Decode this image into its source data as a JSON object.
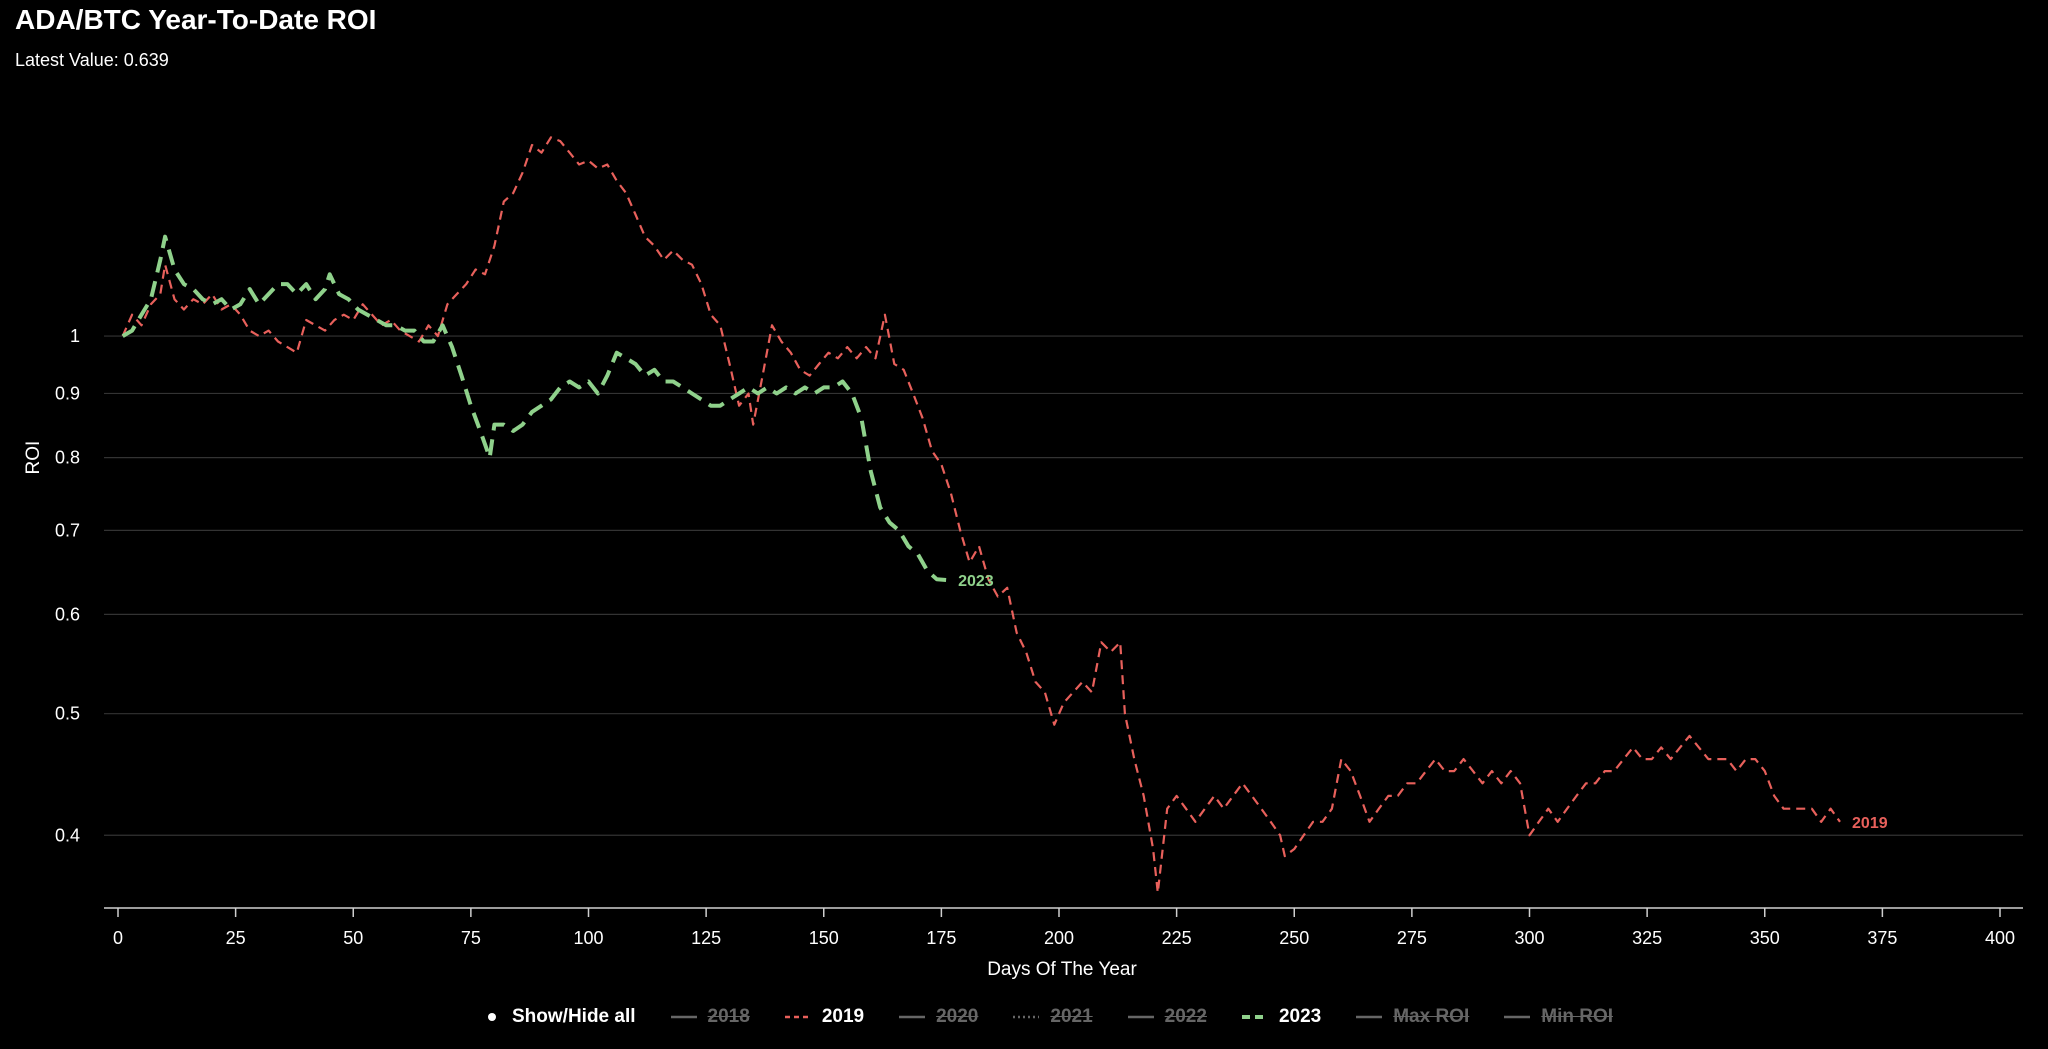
{
  "title": "ADA/BTC Year-To-Date ROI",
  "subtitle": "Latest Value: 0.639",
  "legend": {
    "show_hide_all": "Show/Hide all",
    "items": [
      {
        "label": "2018",
        "color": "#888888",
        "dash": "solid",
        "visible": false
      },
      {
        "label": "2019",
        "color": "#e8605b",
        "dash": "dashed",
        "visible": true
      },
      {
        "label": "2020",
        "color": "#888888",
        "dash": "solid",
        "visible": false
      },
      {
        "label": "2021",
        "color": "#888888",
        "dash": "dotted",
        "visible": false
      },
      {
        "label": "2022",
        "color": "#888888",
        "dash": "solid",
        "visible": false
      },
      {
        "label": "2023",
        "color": "#8fd18b",
        "dash": "dashed",
        "visible": true
      },
      {
        "label": "Max ROI",
        "color": "#888888",
        "dash": "solid",
        "visible": false
      },
      {
        "label": "Min ROI",
        "color": "#888888",
        "dash": "solid",
        "visible": false
      }
    ]
  },
  "chart_data": {
    "type": "line",
    "title": "ADA/BTC Year-To-Date ROI",
    "xlabel": "Days Of The Year",
    "ylabel": "ROI",
    "xlim": [
      -3,
      404
    ],
    "ylim": [
      0.35,
      1.6
    ],
    "yscale": "log",
    "x_ticks": [
      0,
      25,
      50,
      75,
      100,
      125,
      150,
      175,
      200,
      225,
      250,
      275,
      300,
      325,
      350,
      375,
      400
    ],
    "y_ticks": [
      0.4,
      0.5,
      0.6,
      0.7,
      0.8,
      0.9,
      1
    ],
    "grid": "horizontal",
    "legend_position": "bottom",
    "series": [
      {
        "name": "2019",
        "color": "#e8605b",
        "end_label": "2019",
        "points": [
          [
            1,
            1.0
          ],
          [
            3,
            1.04
          ],
          [
            5,
            1.02
          ],
          [
            7,
            1.06
          ],
          [
            9,
            1.08
          ],
          [
            10,
            1.14
          ],
          [
            12,
            1.07
          ],
          [
            14,
            1.05
          ],
          [
            16,
            1.07
          ],
          [
            18,
            1.06
          ],
          [
            20,
            1.08
          ],
          [
            22,
            1.05
          ],
          [
            24,
            1.06
          ],
          [
            26,
            1.04
          ],
          [
            28,
            1.01
          ],
          [
            30,
            1.0
          ],
          [
            32,
            1.01
          ],
          [
            34,
            0.99
          ],
          [
            36,
            0.98
          ],
          [
            38,
            0.97
          ],
          [
            40,
            1.03
          ],
          [
            42,
            1.02
          ],
          [
            44,
            1.01
          ],
          [
            46,
            1.03
          ],
          [
            48,
            1.04
          ],
          [
            50,
            1.03
          ],
          [
            52,
            1.06
          ],
          [
            54,
            1.04
          ],
          [
            56,
            1.02
          ],
          [
            58,
            1.03
          ],
          [
            60,
            1.01
          ],
          [
            62,
            1.0
          ],
          [
            64,
            0.99
          ],
          [
            66,
            1.02
          ],
          [
            68,
            1.0
          ],
          [
            70,
            1.06
          ],
          [
            72,
            1.08
          ],
          [
            74,
            1.1
          ],
          [
            76,
            1.13
          ],
          [
            78,
            1.12
          ],
          [
            80,
            1.18
          ],
          [
            82,
            1.28
          ],
          [
            84,
            1.3
          ],
          [
            86,
            1.35
          ],
          [
            88,
            1.42
          ],
          [
            90,
            1.4
          ],
          [
            92,
            1.44
          ],
          [
            94,
            1.43
          ],
          [
            96,
            1.4
          ],
          [
            98,
            1.37
          ],
          [
            100,
            1.38
          ],
          [
            102,
            1.36
          ],
          [
            104,
            1.37
          ],
          [
            106,
            1.33
          ],
          [
            108,
            1.3
          ],
          [
            110,
            1.25
          ],
          [
            112,
            1.2
          ],
          [
            114,
            1.18
          ],
          [
            116,
            1.15
          ],
          [
            118,
            1.17
          ],
          [
            120,
            1.15
          ],
          [
            122,
            1.14
          ],
          [
            124,
            1.1
          ],
          [
            126,
            1.04
          ],
          [
            128,
            1.02
          ],
          [
            130,
            0.95
          ],
          [
            132,
            0.88
          ],
          [
            134,
            0.9
          ],
          [
            135,
            0.85
          ],
          [
            137,
            0.93
          ],
          [
            139,
            1.02
          ],
          [
            141,
            0.99
          ],
          [
            143,
            0.97
          ],
          [
            145,
            0.94
          ],
          [
            147,
            0.93
          ],
          [
            149,
            0.95
          ],
          [
            151,
            0.97
          ],
          [
            153,
            0.96
          ],
          [
            155,
            0.98
          ],
          [
            157,
            0.96
          ],
          [
            159,
            0.98
          ],
          [
            161,
            0.96
          ],
          [
            163,
            1.04
          ],
          [
            165,
            0.95
          ],
          [
            167,
            0.94
          ],
          [
            169,
            0.9
          ],
          [
            171,
            0.86
          ],
          [
            173,
            0.81
          ],
          [
            175,
            0.79
          ],
          [
            177,
            0.75
          ],
          [
            179,
            0.7
          ],
          [
            181,
            0.66
          ],
          [
            183,
            0.68
          ],
          [
            185,
            0.64
          ],
          [
            187,
            0.62
          ],
          [
            189,
            0.63
          ],
          [
            191,
            0.58
          ],
          [
            193,
            0.56
          ],
          [
            195,
            0.53
          ],
          [
            197,
            0.52
          ],
          [
            199,
            0.49
          ],
          [
            201,
            0.51
          ],
          [
            203,
            0.52
          ],
          [
            205,
            0.53
          ],
          [
            207,
            0.52
          ],
          [
            209,
            0.57
          ],
          [
            211,
            0.56
          ],
          [
            213,
            0.57
          ],
          [
            214,
            0.5
          ],
          [
            216,
            0.46
          ],
          [
            218,
            0.43
          ],
          [
            220,
            0.39
          ],
          [
            221,
            0.36
          ],
          [
            223,
            0.42
          ],
          [
            225,
            0.43
          ],
          [
            227,
            0.42
          ],
          [
            229,
            0.41
          ],
          [
            231,
            0.42
          ],
          [
            233,
            0.43
          ],
          [
            235,
            0.42
          ],
          [
            237,
            0.43
          ],
          [
            239,
            0.44
          ],
          [
            241,
            0.43
          ],
          [
            243,
            0.42
          ],
          [
            245,
            0.41
          ],
          [
            247,
            0.4
          ],
          [
            248,
            0.385
          ],
          [
            250,
            0.39
          ],
          [
            252,
            0.4
          ],
          [
            254,
            0.41
          ],
          [
            256,
            0.41
          ],
          [
            258,
            0.42
          ],
          [
            260,
            0.46
          ],
          [
            262,
            0.45
          ],
          [
            264,
            0.43
          ],
          [
            266,
            0.41
          ],
          [
            268,
            0.42
          ],
          [
            270,
            0.43
          ],
          [
            272,
            0.43
          ],
          [
            274,
            0.44
          ],
          [
            276,
            0.44
          ],
          [
            278,
            0.45
          ],
          [
            280,
            0.46
          ],
          [
            282,
            0.45
          ],
          [
            284,
            0.45
          ],
          [
            286,
            0.46
          ],
          [
            288,
            0.45
          ],
          [
            290,
            0.44
          ],
          [
            292,
            0.45
          ],
          [
            294,
            0.44
          ],
          [
            296,
            0.45
          ],
          [
            298,
            0.44
          ],
          [
            300,
            0.4
          ],
          [
            302,
            0.41
          ],
          [
            304,
            0.42
          ],
          [
            306,
            0.41
          ],
          [
            308,
            0.42
          ],
          [
            310,
            0.43
          ],
          [
            312,
            0.44
          ],
          [
            314,
            0.44
          ],
          [
            316,
            0.45
          ],
          [
            318,
            0.45
          ],
          [
            320,
            0.46
          ],
          [
            322,
            0.47
          ],
          [
            324,
            0.46
          ],
          [
            326,
            0.46
          ],
          [
            328,
            0.47
          ],
          [
            330,
            0.46
          ],
          [
            332,
            0.47
          ],
          [
            334,
            0.48
          ],
          [
            336,
            0.47
          ],
          [
            338,
            0.46
          ],
          [
            340,
            0.46
          ],
          [
            342,
            0.46
          ],
          [
            344,
            0.45
          ],
          [
            346,
            0.46
          ],
          [
            348,
            0.46
          ],
          [
            350,
            0.45
          ],
          [
            352,
            0.43
          ],
          [
            354,
            0.42
          ],
          [
            356,
            0.42
          ],
          [
            358,
            0.42
          ],
          [
            360,
            0.42
          ],
          [
            362,
            0.41
          ],
          [
            364,
            0.42
          ],
          [
            366,
            0.41
          ]
        ]
      },
      {
        "name": "2023",
        "color": "#8fd18b",
        "end_label": "2023",
        "points": [
          [
            1,
            1.0
          ],
          [
            3,
            1.01
          ],
          [
            5,
            1.04
          ],
          [
            7,
            1.07
          ],
          [
            9,
            1.15
          ],
          [
            10,
            1.2
          ],
          [
            12,
            1.13
          ],
          [
            14,
            1.1
          ],
          [
            16,
            1.09
          ],
          [
            18,
            1.07
          ],
          [
            20,
            1.06
          ],
          [
            22,
            1.07
          ],
          [
            24,
            1.05
          ],
          [
            26,
            1.06
          ],
          [
            28,
            1.09
          ],
          [
            30,
            1.06
          ],
          [
            32,
            1.08
          ],
          [
            34,
            1.1
          ],
          [
            36,
            1.1
          ],
          [
            38,
            1.08
          ],
          [
            40,
            1.1
          ],
          [
            42,
            1.07
          ],
          [
            44,
            1.09
          ],
          [
            45,
            1.12
          ],
          [
            47,
            1.08
          ],
          [
            49,
            1.07
          ],
          [
            51,
            1.05
          ],
          [
            53,
            1.04
          ],
          [
            55,
            1.03
          ],
          [
            57,
            1.02
          ],
          [
            59,
            1.02
          ],
          [
            61,
            1.01
          ],
          [
            63,
            1.01
          ],
          [
            65,
            0.99
          ],
          [
            67,
            0.99
          ],
          [
            69,
            1.02
          ],
          [
            71,
            0.98
          ],
          [
            73,
            0.93
          ],
          [
            75,
            0.88
          ],
          [
            77,
            0.84
          ],
          [
            79,
            0.8
          ],
          [
            80,
            0.85
          ],
          [
            82,
            0.85
          ],
          [
            84,
            0.84
          ],
          [
            86,
            0.85
          ],
          [
            88,
            0.87
          ],
          [
            90,
            0.88
          ],
          [
            92,
            0.89
          ],
          [
            94,
            0.91
          ],
          [
            96,
            0.92
          ],
          [
            98,
            0.91
          ],
          [
            100,
            0.92
          ],
          [
            102,
            0.9
          ],
          [
            104,
            0.93
          ],
          [
            106,
            0.97
          ],
          [
            108,
            0.96
          ],
          [
            110,
            0.95
          ],
          [
            112,
            0.93
          ],
          [
            114,
            0.94
          ],
          [
            116,
            0.92
          ],
          [
            118,
            0.92
          ],
          [
            120,
            0.91
          ],
          [
            122,
            0.9
          ],
          [
            124,
            0.89
          ],
          [
            126,
            0.88
          ],
          [
            128,
            0.88
          ],
          [
            130,
            0.89
          ],
          [
            132,
            0.9
          ],
          [
            134,
            0.91
          ],
          [
            136,
            0.9
          ],
          [
            138,
            0.91
          ],
          [
            140,
            0.9
          ],
          [
            142,
            0.91
          ],
          [
            144,
            0.9
          ],
          [
            146,
            0.91
          ],
          [
            148,
            0.9
          ],
          [
            150,
            0.91
          ],
          [
            152,
            0.91
          ],
          [
            154,
            0.92
          ],
          [
            156,
            0.9
          ],
          [
            158,
            0.86
          ],
          [
            160,
            0.78
          ],
          [
            162,
            0.73
          ],
          [
            164,
            0.71
          ],
          [
            166,
            0.7
          ],
          [
            168,
            0.68
          ],
          [
            170,
            0.67
          ],
          [
            172,
            0.65
          ],
          [
            174,
            0.64
          ],
          [
            176,
            0.639
          ]
        ]
      }
    ]
  }
}
